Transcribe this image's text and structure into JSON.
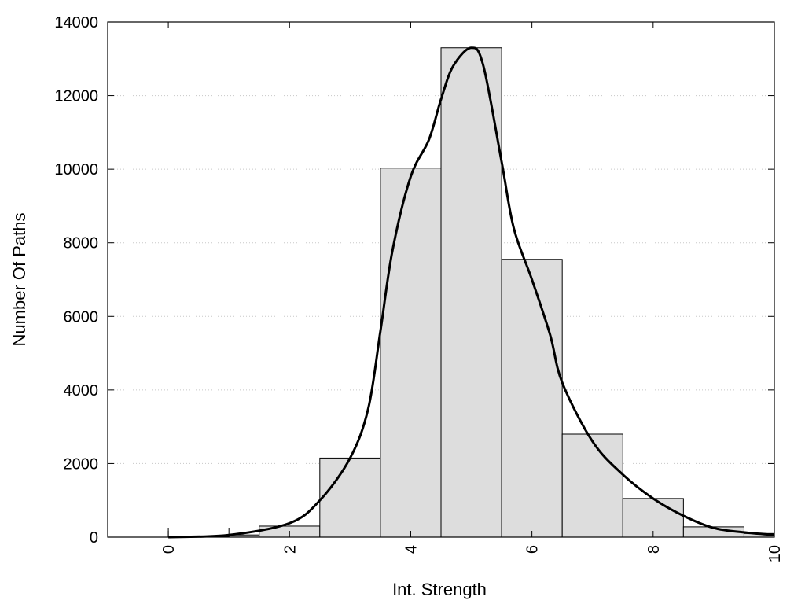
{
  "chart_data": {
    "type": "bar",
    "xlabel": "Int. Strength",
    "ylabel": "Number Of Paths",
    "xlim": [
      -1,
      10
    ],
    "ylim": [
      0,
      14000
    ],
    "x_ticks": [
      0,
      2,
      4,
      6,
      8,
      10
    ],
    "x_tick_labels": [
      "0",
      "2",
      "4",
      "6",
      "8",
      "10"
    ],
    "y_ticks": [
      0,
      2000,
      4000,
      6000,
      8000,
      10000,
      12000,
      14000
    ],
    "y_tick_labels": [
      "0",
      "2000",
      "4000",
      "6000",
      "8000",
      "10000",
      "12000",
      "14000"
    ],
    "grid": "horizontal-dotted",
    "bar_color": "#dddddd",
    "bars": [
      {
        "x0": 0,
        "x1": 1,
        "value": 20
      },
      {
        "x0": 1,
        "x1": 1.5,
        "value": 60
      },
      {
        "x0": 1.5,
        "x1": 2.5,
        "value": 300
      },
      {
        "x0": 2.5,
        "x1": 3.5,
        "value": 2150
      },
      {
        "x0": 3.5,
        "x1": 4.5,
        "value": 10030
      },
      {
        "x0": 4.5,
        "x1": 5.5,
        "value": 13300
      },
      {
        "x0": 5.5,
        "x1": 6.5,
        "value": 7550
      },
      {
        "x0": 6.5,
        "x1": 7.5,
        "value": 2800
      },
      {
        "x0": 7.5,
        "x1": 8.5,
        "value": 1050
      },
      {
        "x0": 8.5,
        "x1": 9.5,
        "value": 280
      },
      {
        "x0": 9.5,
        "x1": 10,
        "value": 100
      }
    ],
    "density_curve": {
      "x": [
        0,
        1,
        2,
        2.5,
        3,
        3.3,
        3.5,
        3.7,
        4,
        4.3,
        4.5,
        4.7,
        5,
        5.2,
        5.5,
        5.7,
        6,
        6.3,
        6.5,
        7,
        7.5,
        8,
        8.5,
        9,
        9.5,
        10
      ],
      "y": [
        0,
        60,
        380,
        1000,
        2150,
        3500,
        5600,
        7800,
        9800,
        10800,
        11900,
        12800,
        13300,
        12800,
        10200,
        8400,
        7000,
        5500,
        4200,
        2600,
        1700,
        1050,
        580,
        250,
        130,
        60
      ]
    }
  }
}
